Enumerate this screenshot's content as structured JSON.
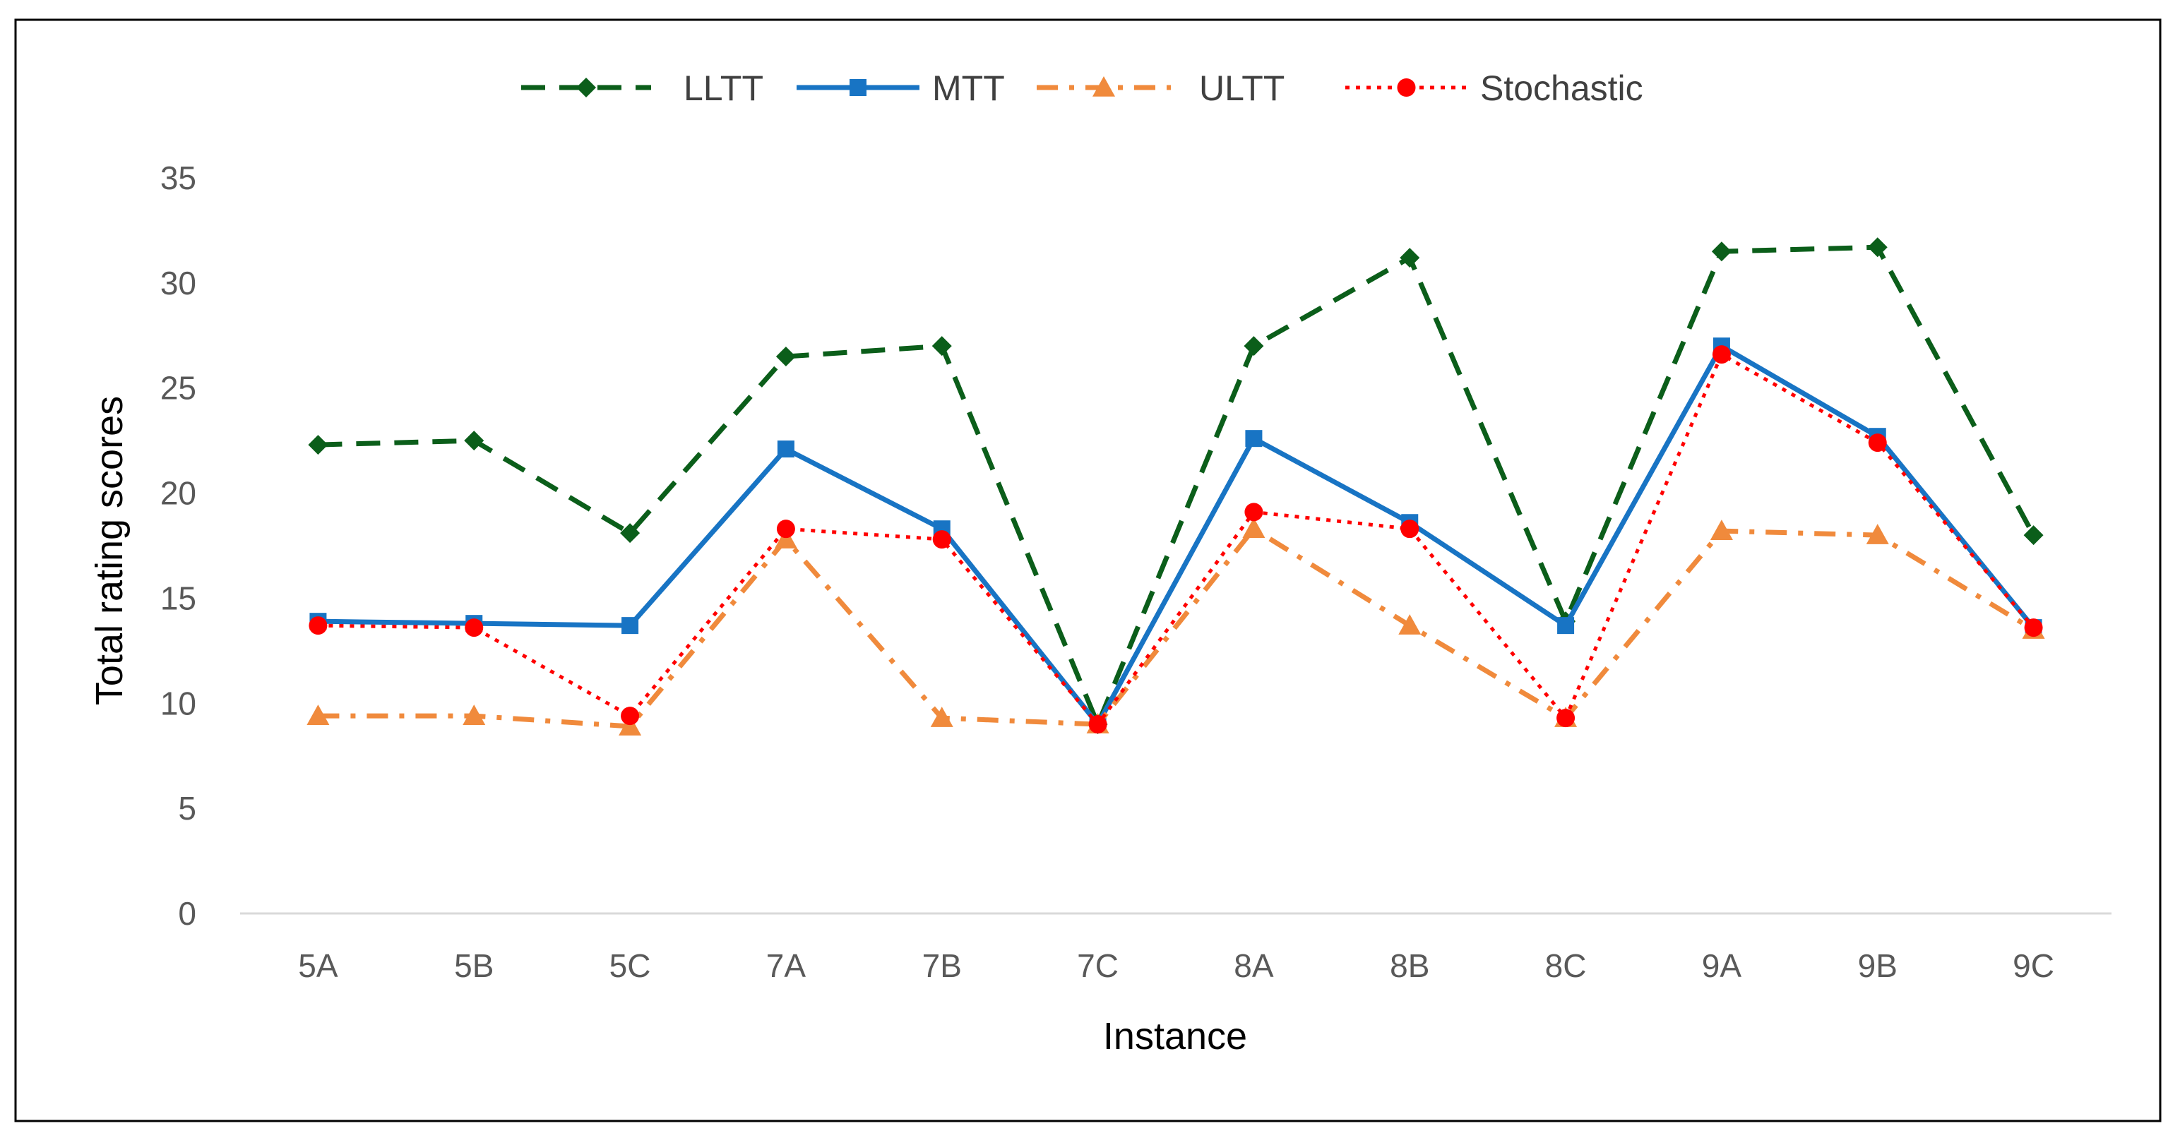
{
  "chart_data": {
    "type": "line",
    "title": "",
    "xlabel": "Instance",
    "ylabel": "Total rating  scores",
    "ylim": [
      0,
      35
    ],
    "yticks": [
      0,
      5,
      10,
      15,
      20,
      25,
      30,
      35
    ],
    "grid": false,
    "legend_position": "top",
    "categories": [
      "5A",
      "5B",
      "5C",
      "7A",
      "7B",
      "7C",
      "8A",
      "8B",
      "8C",
      "9A",
      "9B",
      "9C"
    ],
    "series": [
      {
        "name": "LLTT",
        "color": "#0b5e1a",
        "line_style": "dashed",
        "marker": "diamond",
        "values": [
          22.3,
          22.5,
          18.1,
          26.5,
          27.0,
          9.0,
          27.0,
          31.2,
          13.9,
          31.5,
          31.7,
          18.0
        ]
      },
      {
        "name": "MTT",
        "color": "#1874c4",
        "line_style": "solid",
        "marker": "square",
        "values": [
          13.9,
          13.8,
          13.7,
          22.1,
          18.3,
          9.0,
          22.6,
          18.6,
          13.7,
          27.0,
          22.7,
          13.6
        ]
      },
      {
        "name": "ULTT",
        "color": "#f08a3c",
        "line_style": "dash-dot",
        "marker": "triangle",
        "values": [
          9.4,
          9.4,
          8.9,
          17.8,
          9.3,
          9.0,
          18.3,
          13.7,
          9.3,
          18.2,
          18.0,
          13.5
        ]
      },
      {
        "name": "Stochastic",
        "color": "#ff0000",
        "line_style": "dotted",
        "marker": "circle",
        "values": [
          13.7,
          13.6,
          9.4,
          18.3,
          17.8,
          9.0,
          19.1,
          18.3,
          9.3,
          26.6,
          22.4,
          13.6
        ]
      }
    ]
  }
}
